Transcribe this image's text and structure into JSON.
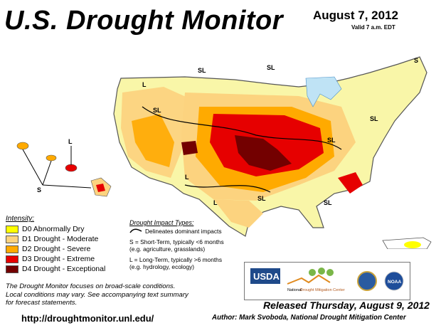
{
  "title": "U.S. Drought Monitor",
  "date": "August 7, 2012",
  "valid": "Valid 7 a.m. EDT",
  "legend": {
    "heading": "Intensity:",
    "items": [
      {
        "label": "D0 Abnormally Dry",
        "color": "#ffff00"
      },
      {
        "label": "D1 Drought - Moderate",
        "color": "#fcd37f"
      },
      {
        "label": "D2 Drought - Severe",
        "color": "#ffaa00"
      },
      {
        "label": "D3 Drought - Extreme",
        "color": "#e60000"
      },
      {
        "label": "D4 Drought - Exceptional",
        "color": "#730000"
      }
    ]
  },
  "impact": {
    "heading": "Drought Impact Types:",
    "boundary": "Delineates dominant impacts",
    "short_term_1": "S = Short-Term, typically <6 months",
    "short_term_2": "(e.g. agriculture, grasslands)",
    "long_term_1": "L = Long-Term, typically >6 months",
    "long_term_2": "(e.g. hydrology, ecology)"
  },
  "footnote_1": "The Drought Monitor focuses on broad-scale conditions.",
  "footnote_2": "Local conditions may vary. See accompanying text summary",
  "footnote_3": "for forecast statements.",
  "url": "http://droughtmonitor.unl.edu/",
  "released": "Released Thursday, August 9, 2012",
  "author": "Author: Mark Svoboda, National Drought Mitigation Center",
  "map_labels": {
    "sl": "SL",
    "l": "L",
    "s": "S"
  },
  "logos": {
    "usda": "USDA",
    "ndmc_1": "National",
    "ndmc_2": "Drought Mitigation Center",
    "noaa": "NOAA"
  }
}
